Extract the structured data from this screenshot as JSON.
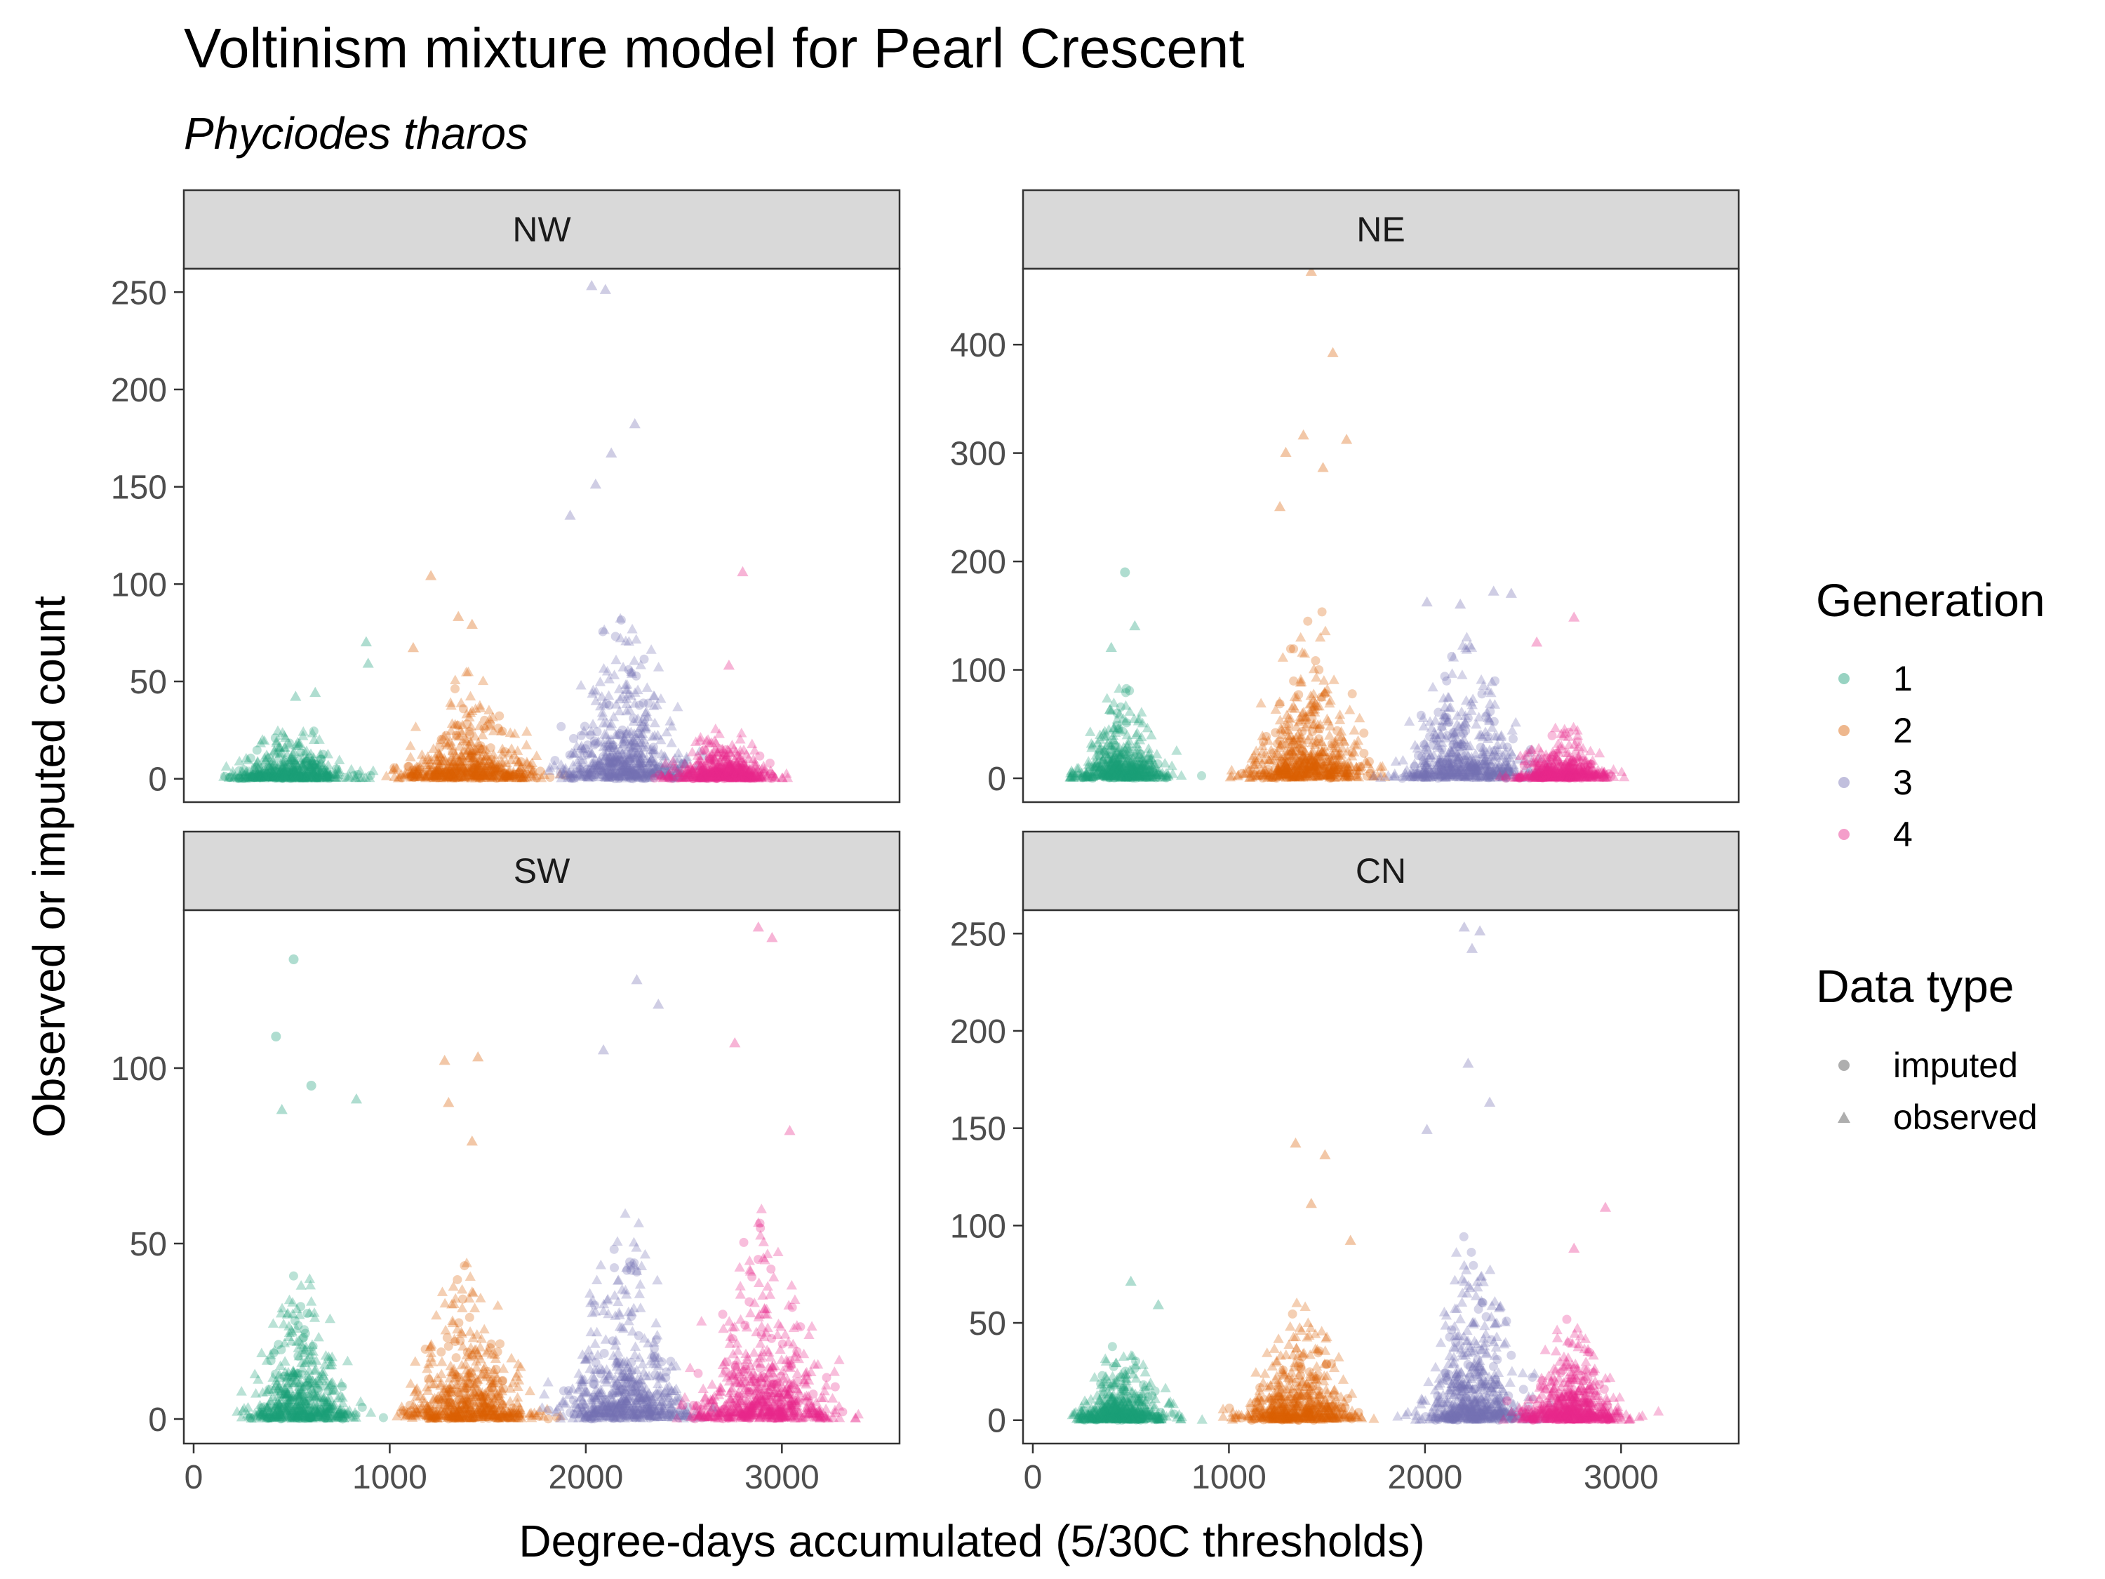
{
  "chart_data": {
    "type": "scatter",
    "title": "Voltinism mixture model for Pearl Crescent",
    "subtitle": "Phyciodes tharos",
    "xlabel": "Degree-days accumulated (5/30C thresholds)",
    "ylabel": "Observed or imputed count",
    "xlim": [
      -50,
      3600
    ],
    "x_ticks": [
      0,
      1000,
      2000,
      3000
    ],
    "x_tick_labels": [
      "0",
      "1000",
      "2000",
      "3000"
    ],
    "legend": {
      "placement": "right",
      "generation": {
        "title": "Generation",
        "items": [
          {
            "label": "1",
            "color": "#1b9e77"
          },
          {
            "label": "2",
            "color": "#d95f02"
          },
          {
            "label": "3",
            "color": "#7570b3"
          },
          {
            "label": "4",
            "color": "#e7298a"
          }
        ]
      },
      "data_type": {
        "title": "Data type",
        "items": [
          {
            "label": "imputed",
            "shape": "circle"
          },
          {
            "label": "observed",
            "shape": "triangle"
          }
        ]
      }
    },
    "facets": [
      {
        "name": "NW",
        "ylim": [
          -12,
          262
        ],
        "y_ticks": [
          0,
          50,
          100,
          150,
          200,
          250
        ],
        "y_tick_labels": [
          "0",
          "50",
          "100",
          "150",
          "200",
          "250"
        ],
        "clusters": [
          {
            "generation": "1",
            "center": 500,
            "spread": 250,
            "xmin": 150,
            "xmax": 950,
            "typical": 6,
            "max": 30,
            "count": 480
          },
          {
            "generation": "2",
            "center": 1400,
            "spread": 300,
            "xmin": 950,
            "xmax": 1900,
            "typical": 12,
            "max": 55,
            "count": 520
          },
          {
            "generation": "3",
            "center": 2200,
            "spread": 280,
            "xmin": 1800,
            "xmax": 2650,
            "typical": 22,
            "max": 95,
            "count": 560
          },
          {
            "generation": "4",
            "center": 2700,
            "spread": 230,
            "xmin": 2350,
            "xmax": 3050,
            "typical": 7,
            "max": 28,
            "count": 480
          }
        ],
        "peaks": [
          {
            "generation": "1",
            "x": 880,
            "y": 70,
            "shape": "triangle"
          },
          {
            "generation": "1",
            "x": 890,
            "y": 59,
            "shape": "triangle"
          },
          {
            "generation": "1",
            "x": 520,
            "y": 42,
            "shape": "triangle"
          },
          {
            "generation": "1",
            "x": 620,
            "y": 44,
            "shape": "triangle"
          },
          {
            "generation": "2",
            "x": 1210,
            "y": 104,
            "shape": "triangle"
          },
          {
            "generation": "2",
            "x": 1350,
            "y": 83,
            "shape": "triangle"
          },
          {
            "generation": "2",
            "x": 1420,
            "y": 79,
            "shape": "triangle"
          },
          {
            "generation": "2",
            "x": 1120,
            "y": 67,
            "shape": "triangle"
          },
          {
            "generation": "3",
            "x": 2030,
            "y": 253,
            "shape": "triangle"
          },
          {
            "generation": "3",
            "x": 2100,
            "y": 251,
            "shape": "triangle"
          },
          {
            "generation": "3",
            "x": 2250,
            "y": 182,
            "shape": "triangle"
          },
          {
            "generation": "3",
            "x": 2130,
            "y": 167,
            "shape": "triangle"
          },
          {
            "generation": "3",
            "x": 2050,
            "y": 151,
            "shape": "triangle"
          },
          {
            "generation": "3",
            "x": 1920,
            "y": 135,
            "shape": "triangle"
          },
          {
            "generation": "4",
            "x": 2800,
            "y": 106,
            "shape": "triangle"
          },
          {
            "generation": "4",
            "x": 2730,
            "y": 58,
            "shape": "triangle"
          }
        ]
      },
      {
        "name": "NE",
        "ylim": [
          -22,
          470
        ],
        "y_ticks": [
          0,
          100,
          200,
          300,
          400
        ],
        "y_tick_labels": [
          "0",
          "100",
          "200",
          "300",
          "400"
        ],
        "clusters": [
          {
            "generation": "1",
            "center": 450,
            "spread": 200,
            "xmin": 150,
            "xmax": 900,
            "typical": 20,
            "max": 90,
            "count": 480
          },
          {
            "generation": "2",
            "center": 1400,
            "spread": 260,
            "xmin": 900,
            "xmax": 1850,
            "typical": 40,
            "max": 180,
            "count": 560
          },
          {
            "generation": "3",
            "center": 2200,
            "spread": 260,
            "xmin": 1700,
            "xmax": 2650,
            "typical": 30,
            "max": 130,
            "count": 520
          },
          {
            "generation": "4",
            "center": 2700,
            "spread": 220,
            "xmin": 2350,
            "xmax": 3050,
            "typical": 10,
            "max": 50,
            "count": 440
          }
        ],
        "peaks": [
          {
            "generation": "1",
            "x": 470,
            "y": 190,
            "shape": "circle"
          },
          {
            "generation": "1",
            "x": 520,
            "y": 140,
            "shape": "triangle"
          },
          {
            "generation": "1",
            "x": 400,
            "y": 120,
            "shape": "triangle"
          },
          {
            "generation": "2",
            "x": 1420,
            "y": 467,
            "shape": "triangle"
          },
          {
            "generation": "2",
            "x": 1530,
            "y": 392,
            "shape": "triangle"
          },
          {
            "generation": "2",
            "x": 1380,
            "y": 316,
            "shape": "triangle"
          },
          {
            "generation": "2",
            "x": 1600,
            "y": 312,
            "shape": "triangle"
          },
          {
            "generation": "2",
            "x": 1290,
            "y": 300,
            "shape": "triangle"
          },
          {
            "generation": "2",
            "x": 1480,
            "y": 286,
            "shape": "triangle"
          },
          {
            "generation": "2",
            "x": 1260,
            "y": 250,
            "shape": "triangle"
          },
          {
            "generation": "3",
            "x": 2350,
            "y": 172,
            "shape": "triangle"
          },
          {
            "generation": "3",
            "x": 2440,
            "y": 170,
            "shape": "triangle"
          },
          {
            "generation": "3",
            "x": 2010,
            "y": 162,
            "shape": "triangle"
          },
          {
            "generation": "3",
            "x": 2180,
            "y": 160,
            "shape": "triangle"
          },
          {
            "generation": "4",
            "x": 2760,
            "y": 148,
            "shape": "triangle"
          },
          {
            "generation": "4",
            "x": 2570,
            "y": 125,
            "shape": "triangle"
          }
        ]
      },
      {
        "name": "SW",
        "ylim": [
          -7,
          145
        ],
        "y_ticks": [
          0,
          50,
          100
        ],
        "y_tick_labels": [
          "0",
          "50",
          "100"
        ],
        "clusters": [
          {
            "generation": "1",
            "center": 550,
            "spread": 220,
            "xmin": 200,
            "xmax": 1000,
            "typical": 10,
            "max": 45,
            "count": 520
          },
          {
            "generation": "2",
            "center": 1400,
            "spread": 280,
            "xmin": 950,
            "xmax": 1900,
            "typical": 10,
            "max": 45,
            "count": 540
          },
          {
            "generation": "3",
            "center": 2200,
            "spread": 280,
            "xmin": 1750,
            "xmax": 2700,
            "typical": 15,
            "max": 60,
            "count": 580
          },
          {
            "generation": "4",
            "center": 2900,
            "spread": 300,
            "xmin": 2450,
            "xmax": 3400,
            "typical": 12,
            "max": 60,
            "count": 620
          }
        ],
        "peaks": [
          {
            "generation": "1",
            "x": 510,
            "y": 131,
            "shape": "circle"
          },
          {
            "generation": "1",
            "x": 420,
            "y": 109,
            "shape": "circle"
          },
          {
            "generation": "1",
            "x": 600,
            "y": 95,
            "shape": "circle"
          },
          {
            "generation": "1",
            "x": 830,
            "y": 91,
            "shape": "triangle"
          },
          {
            "generation": "1",
            "x": 450,
            "y": 88,
            "shape": "triangle"
          },
          {
            "generation": "2",
            "x": 1280,
            "y": 102,
            "shape": "triangle"
          },
          {
            "generation": "2",
            "x": 1450,
            "y": 103,
            "shape": "triangle"
          },
          {
            "generation": "2",
            "x": 1300,
            "y": 90,
            "shape": "triangle"
          },
          {
            "generation": "2",
            "x": 1420,
            "y": 79,
            "shape": "triangle"
          },
          {
            "generation": "3",
            "x": 2260,
            "y": 125,
            "shape": "triangle"
          },
          {
            "generation": "3",
            "x": 2370,
            "y": 118,
            "shape": "triangle"
          },
          {
            "generation": "3",
            "x": 2090,
            "y": 105,
            "shape": "triangle"
          },
          {
            "generation": "4",
            "x": 2880,
            "y": 140,
            "shape": "triangle"
          },
          {
            "generation": "4",
            "x": 2950,
            "y": 137,
            "shape": "triangle"
          },
          {
            "generation": "4",
            "x": 2760,
            "y": 107,
            "shape": "triangle"
          },
          {
            "generation": "4",
            "x": 3040,
            "y": 82,
            "shape": "triangle"
          }
        ]
      },
      {
        "name": "CN",
        "ylim": [
          -12,
          262
        ],
        "y_ticks": [
          0,
          50,
          100,
          150,
          200,
          250
        ],
        "y_tick_labels": [
          "0",
          "50",
          "100",
          "150",
          "200",
          "250"
        ],
        "clusters": [
          {
            "generation": "1",
            "center": 450,
            "spread": 200,
            "xmin": 200,
            "xmax": 950,
            "typical": 10,
            "max": 40,
            "count": 480
          },
          {
            "generation": "2",
            "center": 1350,
            "spread": 250,
            "xmin": 900,
            "xmax": 1800,
            "typical": 15,
            "max": 60,
            "count": 520
          },
          {
            "generation": "3",
            "center": 2250,
            "spread": 230,
            "xmin": 1800,
            "xmax": 2650,
            "typical": 25,
            "max": 100,
            "count": 560
          },
          {
            "generation": "4",
            "center": 2750,
            "spread": 230,
            "xmin": 2400,
            "xmax": 3200,
            "typical": 12,
            "max": 55,
            "count": 520
          }
        ],
        "peaks": [
          {
            "generation": "1",
            "x": 500,
            "y": 71,
            "shape": "triangle"
          },
          {
            "generation": "1",
            "x": 640,
            "y": 59,
            "shape": "triangle"
          },
          {
            "generation": "2",
            "x": 1340,
            "y": 142,
            "shape": "triangle"
          },
          {
            "generation": "2",
            "x": 1490,
            "y": 136,
            "shape": "triangle"
          },
          {
            "generation": "2",
            "x": 1420,
            "y": 111,
            "shape": "triangle"
          },
          {
            "generation": "2",
            "x": 1620,
            "y": 92,
            "shape": "triangle"
          },
          {
            "generation": "3",
            "x": 2200,
            "y": 253,
            "shape": "triangle"
          },
          {
            "generation": "3",
            "x": 2280,
            "y": 251,
            "shape": "triangle"
          },
          {
            "generation": "3",
            "x": 2240,
            "y": 242,
            "shape": "triangle"
          },
          {
            "generation": "3",
            "x": 2220,
            "y": 183,
            "shape": "triangle"
          },
          {
            "generation": "3",
            "x": 2330,
            "y": 163,
            "shape": "triangle"
          },
          {
            "generation": "3",
            "x": 2010,
            "y": 149,
            "shape": "triangle"
          },
          {
            "generation": "4",
            "x": 2920,
            "y": 109,
            "shape": "triangle"
          },
          {
            "generation": "4",
            "x": 2760,
            "y": 88,
            "shape": "triangle"
          }
        ]
      }
    ]
  }
}
